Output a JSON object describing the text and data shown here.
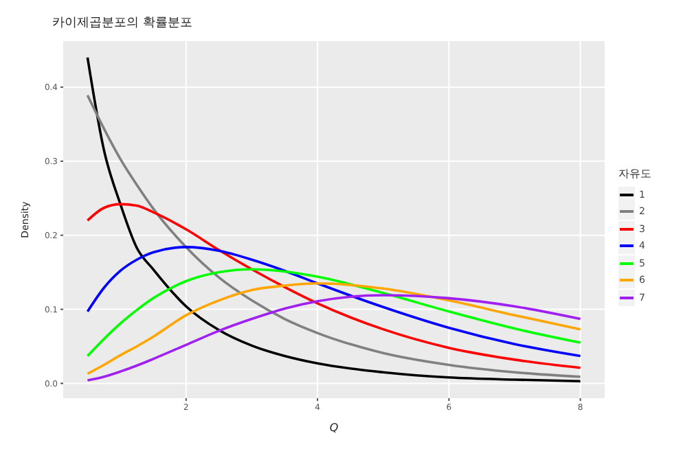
{
  "chart_data": {
    "type": "line",
    "title": "카이제곱분포의 확률분포",
    "xlabel": "Q",
    "ylabel": "Density",
    "legend_title": "자유도",
    "x": [
      0.5,
      0.75,
      1,
      1.25,
      1.5,
      2,
      2.5,
      3,
      3.5,
      4,
      5,
      6,
      7,
      8
    ],
    "series": [
      {
        "name": "1",
        "color": "#000000",
        "values": [
          0.44,
          0.315,
          0.242,
          0.183,
          0.154,
          0.104,
          0.072,
          0.051,
          0.037,
          0.027,
          0.015,
          0.008,
          0.005,
          0.003
        ]
      },
      {
        "name": "2",
        "color": "#808080",
        "values": [
          0.389,
          0.344,
          0.303,
          0.268,
          0.236,
          0.184,
          0.143,
          0.112,
          0.087,
          0.068,
          0.041,
          0.025,
          0.015,
          0.009
        ]
      },
      {
        "name": "3",
        "color": "#ff0000",
        "values": [
          0.22,
          0.237,
          0.242,
          0.24,
          0.231,
          0.208,
          0.18,
          0.154,
          0.13,
          0.108,
          0.073,
          0.048,
          0.032,
          0.021
        ]
      },
      {
        "name": "4",
        "color": "#0000ff",
        "values": [
          0.097,
          0.129,
          0.152,
          0.167,
          0.177,
          0.184,
          0.179,
          0.167,
          0.152,
          0.135,
          0.103,
          0.075,
          0.053,
          0.037
        ]
      },
      {
        "name": "5",
        "color": "#00ff00",
        "values": [
          0.037,
          0.06,
          0.081,
          0.099,
          0.115,
          0.138,
          0.15,
          0.154,
          0.151,
          0.144,
          0.122,
          0.097,
          0.074,
          0.055
        ]
      },
      {
        "name": "6",
        "color": "#ffa500",
        "values": [
          0.013,
          0.025,
          0.038,
          0.05,
          0.063,
          0.092,
          0.112,
          0.126,
          0.132,
          0.135,
          0.128,
          0.112,
          0.092,
          0.073
        ]
      },
      {
        "name": "7",
        "color": "#a020f0",
        "values": [
          0.004,
          0.009,
          0.016,
          0.024,
          0.033,
          0.052,
          0.071,
          0.087,
          0.101,
          0.111,
          0.119,
          0.115,
          0.104,
          0.087
        ]
      }
    ],
    "xlim": [
      0.13,
      8.37
    ],
    "xticks": [
      2,
      4,
      6,
      8
    ],
    "ylim": [
      -0.02,
      0.462
    ],
    "yticks": [
      {
        "value": 0,
        "label": "0.0"
      },
      0.1,
      0.2,
      0.3,
      0.4
    ],
    "grid": true,
    "legend": "right",
    "line_style": "solid"
  }
}
